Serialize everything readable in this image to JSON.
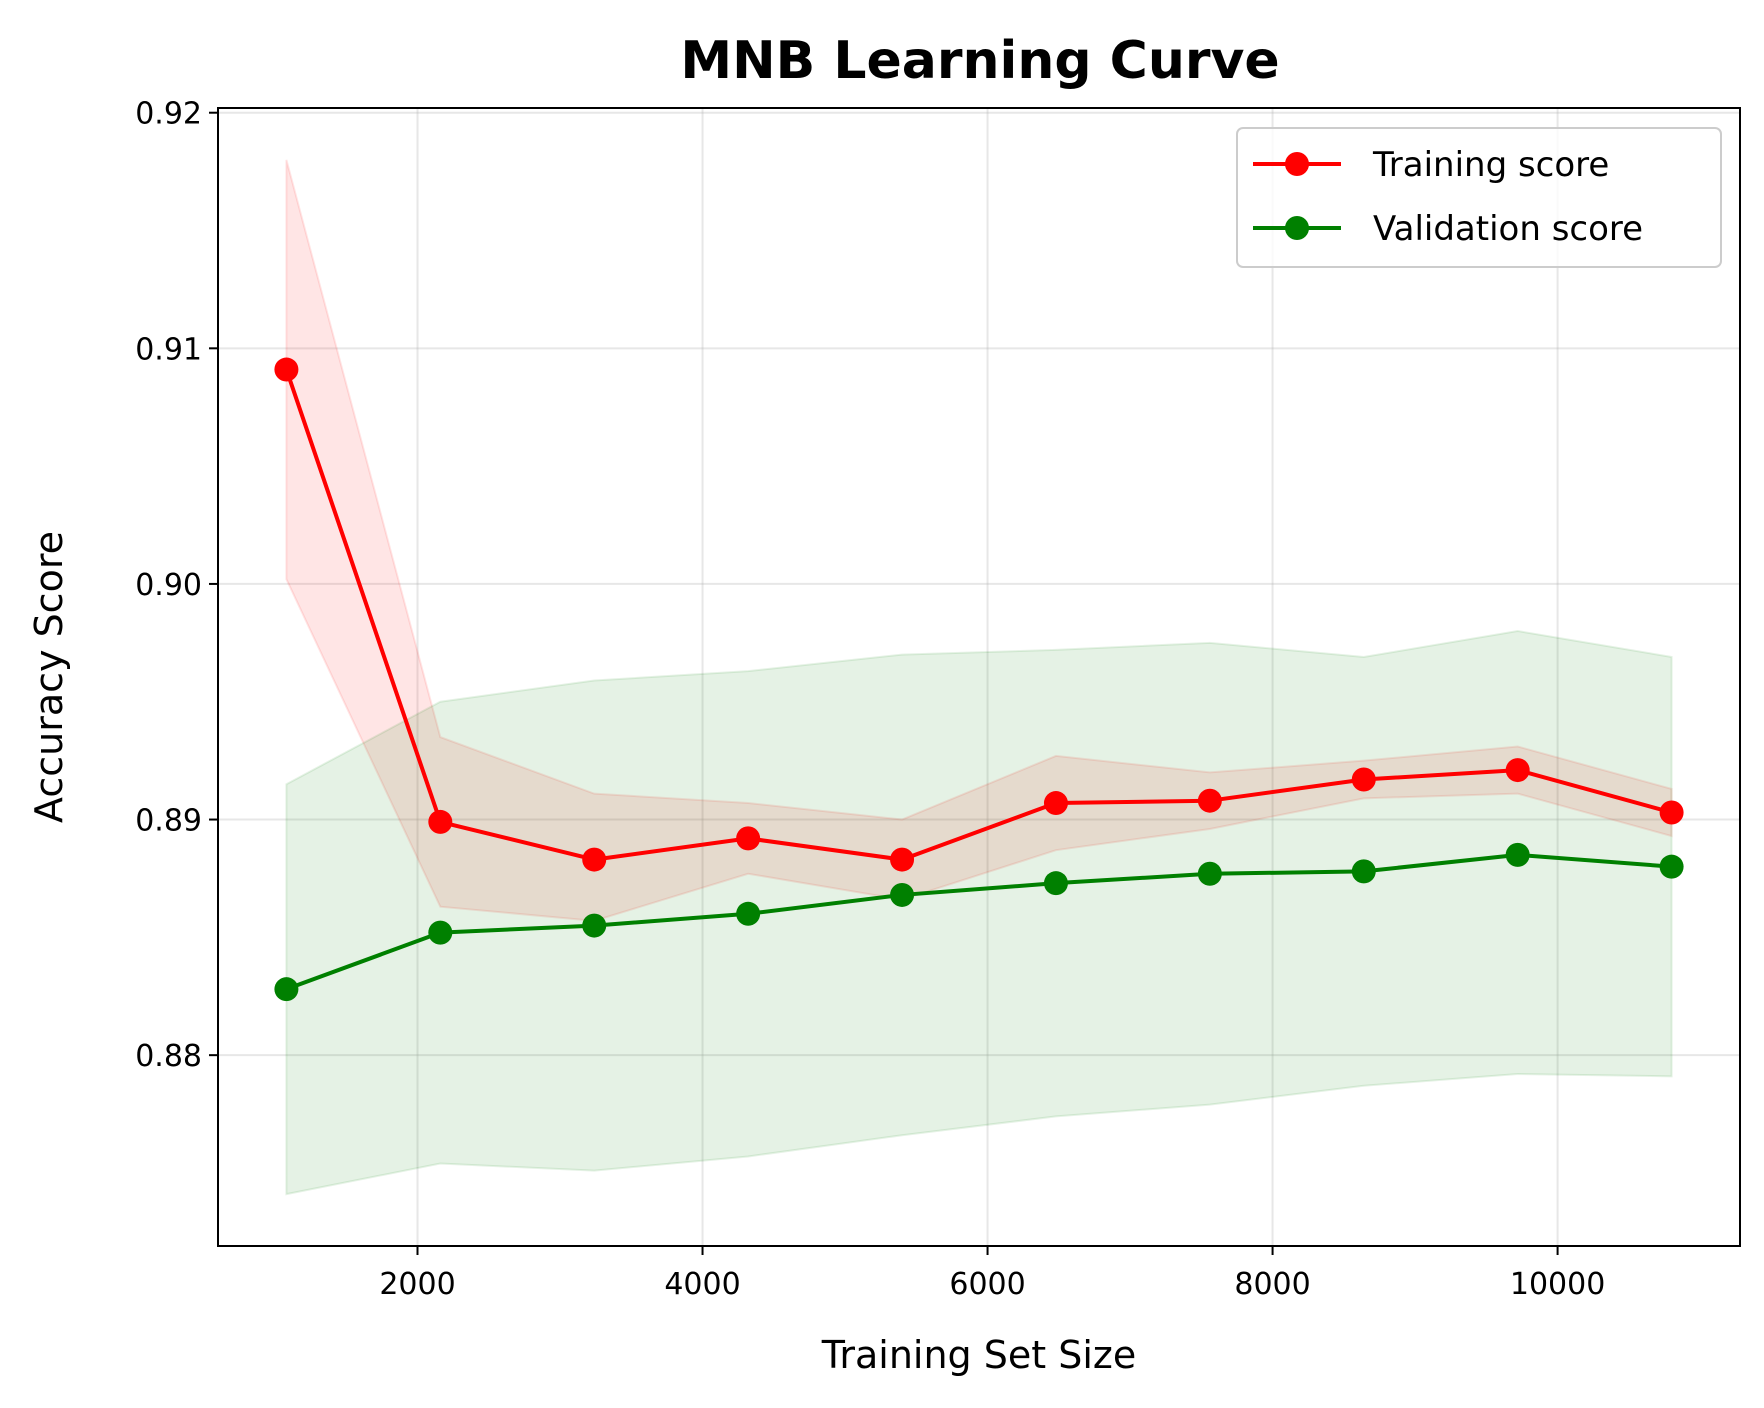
{
  "chart_data": {
    "type": "line",
    "title": "MNB Learning Curve",
    "xlabel": "Training Set Size",
    "ylabel": "Accuracy Score",
    "xlim": [
      600,
      11280
    ],
    "ylim": [
      0.8719,
      0.9202
    ],
    "xticks": [
      2000,
      4000,
      6000,
      8000,
      10000
    ],
    "yticks": [
      0.88,
      0.89,
      0.9,
      0.91,
      0.92
    ],
    "ytick_labels": [
      "0.88",
      "0.89",
      "0.90",
      "0.91",
      "0.92"
    ],
    "grid": true,
    "legend_position": "top-right",
    "x": [
      1080,
      2160,
      3240,
      4320,
      5400,
      6480,
      7560,
      8640,
      9720,
      10800
    ],
    "series": [
      {
        "name": "Training score",
        "color": "#ff0000",
        "values": [
          0.9091,
          0.8899,
          0.8883,
          0.8892,
          0.8883,
          0.8907,
          0.8908,
          0.8917,
          0.8921,
          0.8903
        ],
        "band_upper": [
          0.918,
          0.8935,
          0.8911,
          0.8907,
          0.89,
          0.8927,
          0.892,
          0.8925,
          0.8931,
          0.8913
        ],
        "band_lower": [
          0.9002,
          0.8863,
          0.8857,
          0.8877,
          0.8866,
          0.8887,
          0.8896,
          0.8909,
          0.8911,
          0.8893
        ]
      },
      {
        "name": "Validation score",
        "color": "#008000",
        "values": [
          0.8828,
          0.8852,
          0.8855,
          0.886,
          0.8868,
          0.8873,
          0.8877,
          0.8878,
          0.8885,
          0.888
        ],
        "band_upper": [
          0.8915,
          0.895,
          0.8959,
          0.8963,
          0.897,
          0.8972,
          0.8975,
          0.8969,
          0.898,
          0.8969
        ],
        "band_lower": [
          0.8741,
          0.8754,
          0.8751,
          0.8757,
          0.8766,
          0.8774,
          0.8779,
          0.8787,
          0.8792,
          0.8791
        ]
      }
    ]
  }
}
